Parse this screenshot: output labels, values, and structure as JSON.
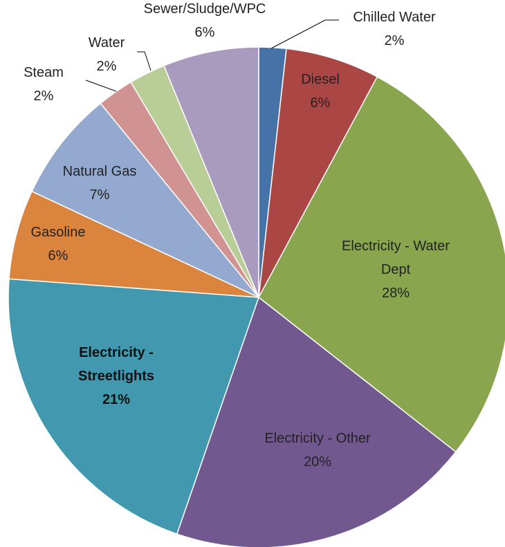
{
  "chart_data": {
    "type": "pie",
    "title": "",
    "start_angle_deg": 0,
    "direction": "clockwise",
    "slices": [
      {
        "name": "Chilled Water",
        "percent_label": "2%",
        "value": 1.8,
        "color": "#4572A7",
        "label_lines": [
          "Chilled Water",
          "2%"
        ],
        "label_outside": true,
        "bold": false
      },
      {
        "name": "Diesel",
        "percent_label": "6%",
        "value": 6.2,
        "color": "#AA4643",
        "label_lines": [
          "Diesel",
          "6%"
        ],
        "label_outside": false,
        "bold": false
      },
      {
        "name": "Electricity - Water Dept",
        "percent_label": "28%",
        "value": 28.3,
        "color": "#89A54E",
        "label_lines": [
          "Electricity - Water",
          "Dept",
          "28%"
        ],
        "label_outside": false,
        "bold": false
      },
      {
        "name": "Electricity - Other",
        "percent_label": "20%",
        "value": 20.1,
        "color": "#71588F",
        "label_lines": [
          "Electricity - Other",
          "20%"
        ],
        "label_outside": false,
        "bold": false
      },
      {
        "name": "Electricity - Streetlights",
        "percent_label": "21%",
        "value": 21.3,
        "color": "#4198AF",
        "label_lines": [
          "Electricity -",
          "Streetlights",
          "21%"
        ],
        "label_outside": false,
        "bold": true
      },
      {
        "name": "Gasoline",
        "percent_label": "6%",
        "value": 5.9,
        "color": "#DB843D",
        "label_lines": [
          "Gasoline",
          "6%"
        ],
        "label_outside": false,
        "bold": false
      },
      {
        "name": "Natural Gas",
        "percent_label": "7%",
        "value": 7.3,
        "color": "#93A9CF",
        "label_lines": [
          "Natural Gas",
          "7%"
        ],
        "label_outside": false,
        "bold": false
      },
      {
        "name": "Steam",
        "percent_label": "2%",
        "value": 2.4,
        "color": "#D19392",
        "label_lines": [
          "Steam",
          "2%"
        ],
        "label_outside": true,
        "bold": false
      },
      {
        "name": "Water",
        "percent_label": "2%",
        "value": 2.4,
        "color": "#B9CD96",
        "label_lines": [
          "Water",
          "2%"
        ],
        "label_outside": true,
        "bold": false
      },
      {
        "name": "Sewer/Sludge/WPC",
        "percent_label": "6%",
        "value": 6.3,
        "color": "#A99BBD",
        "label_lines": [
          "Sewer/Sludge/WPC",
          "6%"
        ],
        "label_outside": true,
        "bold": false
      }
    ]
  }
}
